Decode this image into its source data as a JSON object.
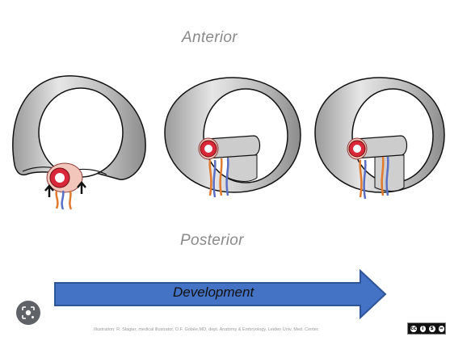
{
  "labels": {
    "top": "Anterior",
    "bottom": "Posterior",
    "arrow": "Development"
  },
  "credit": "Illustration: R. Slagter, medical illustrator, O.F. Gobée,MD, dept. Anatomy & Embryology, Leiden Univ. Med. Center.",
  "license_badge": {
    "glyphs": [
      "cc",
      "i",
      "$",
      "="
    ]
  },
  "colors": {
    "arrow_fill": "#4472c4",
    "arrow_stroke": "#2f5597",
    "gut_red": "#d9283a",
    "gut_pink": "#f2c6bb",
    "membrane_gray": "#c8c8c8",
    "vessel_orange": "#e07a2e",
    "vessel_blue": "#5a6fc4"
  },
  "icons": {
    "lens": "lens-search-icon"
  }
}
